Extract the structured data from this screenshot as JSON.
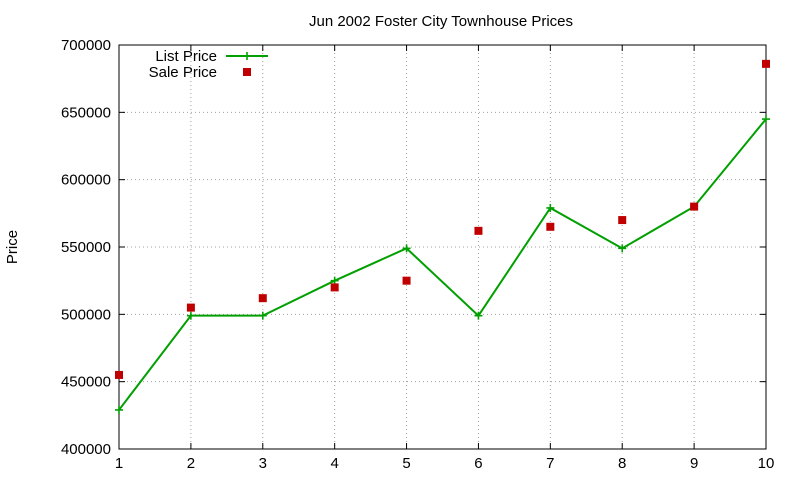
{
  "chart_data": {
    "type": "line",
    "title": "Jun 2002 Foster City Townhouse Prices",
    "xlabel": "",
    "ylabel": "Price",
    "x": [
      1,
      2,
      3,
      4,
      5,
      6,
      7,
      8,
      9,
      10
    ],
    "xlim": [
      1,
      10
    ],
    "ylim": [
      400000,
      700000
    ],
    "yticks": [
      400000,
      450000,
      500000,
      550000,
      600000,
      650000,
      700000
    ],
    "grid": true,
    "legend_position": "top-left",
    "series": [
      {
        "name": "List Price",
        "style": "line-points",
        "color": "#00a000",
        "values": [
          429000,
          499000,
          499000,
          525000,
          549000,
          499000,
          579000,
          549000,
          580000,
          645000
        ]
      },
      {
        "name": "Sale Price",
        "style": "points",
        "color": "#c00000",
        "values": [
          455000,
          505000,
          512000,
          520000,
          525000,
          562000,
          565000,
          570000,
          580000,
          686000
        ]
      }
    ]
  }
}
